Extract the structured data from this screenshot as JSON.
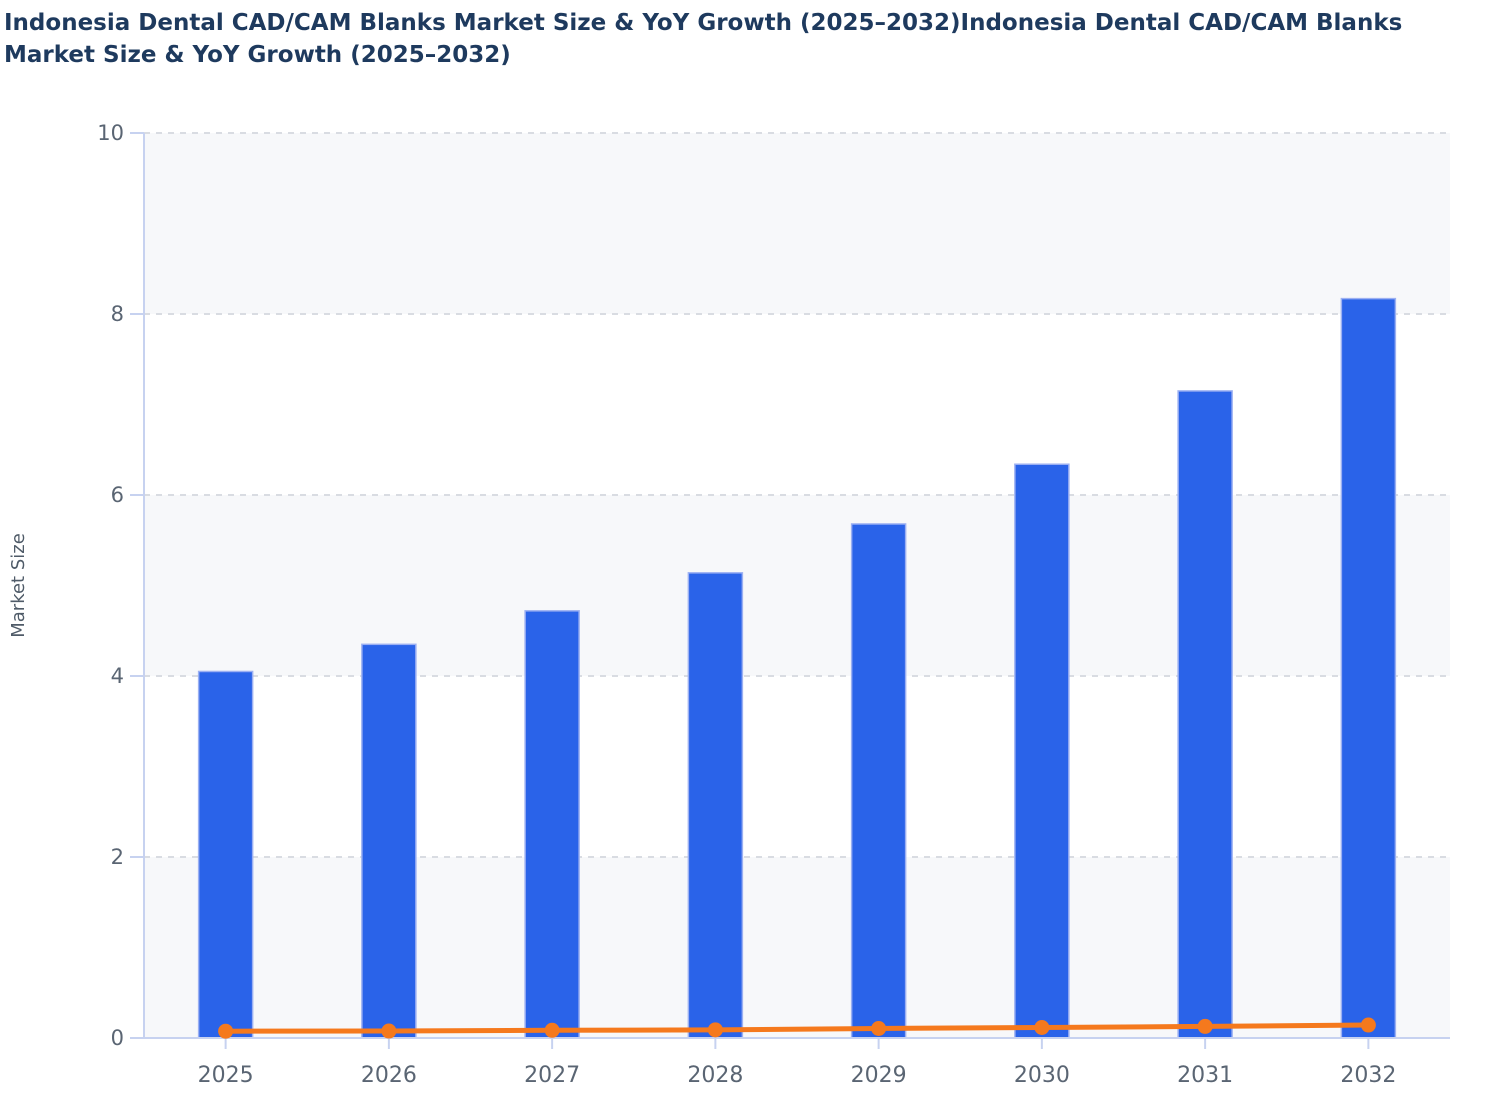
{
  "header": {
    "title": "Indonesia Dental CAD/CAM Blanks Market Size & YoY Growth (2025–2032)Indonesia Dental CAD/CAM Blanks Market Size & YoY Growth (2025–2032)",
    "title_lines": [
      "Indonesia Dental CAD/CAM Blanks Market Size & YoY Growth (2025–2032)Indonesia Dental CAD/CAM Blanks",
      "Market Size & YoY Growth (2025–2032)"
    ]
  },
  "chart_data": {
    "type": "bar",
    "title": "Indonesia Dental CAD/CAM Blanks Market Size & YoY Growth (2025–2032)",
    "categories": [
      "2025",
      "2026",
      "2027",
      "2028",
      "2029",
      "2030",
      "2031",
      "2032"
    ],
    "series": [
      {
        "name": "Market Size",
        "type": "bar",
        "color": "#2a63e9",
        "values": [
          4.05,
          4.35,
          4.72,
          5.14,
          5.68,
          6.34,
          7.15,
          8.17
        ]
      },
      {
        "name": "YoY Growth",
        "type": "line",
        "color": "#f5791d",
        "values": [
          0.075,
          0.077,
          0.085,
          0.09,
          0.105,
          0.116,
          0.128,
          0.143
        ]
      }
    ],
    "xlabel": "",
    "ylabel": "Market Size",
    "ylim": [
      0,
      10
    ],
    "yticks": [
      0,
      2,
      4,
      6,
      8,
      10
    ],
    "grid": "horizontal dashed at each y tick, none vertical",
    "legend": "none",
    "plot_bands": {
      "color": "#f7f8fa",
      "ranges": [
        [
          0,
          2
        ],
        [
          4,
          6
        ],
        [
          8,
          10
        ]
      ]
    }
  },
  "style": {
    "title_color": "#1e3a5e",
    "bar_color": "#2a63e9",
    "bar_border_color": "#9cb0f2",
    "line_color": "#f5791d",
    "axis_line_color": "#c7d2f0",
    "grid_color": "#d9dce2",
    "band_color": "#f7f8fa",
    "tick_label_color": "#5a6573",
    "axis_title_color": "#4f5b68",
    "background": "#ffffff"
  }
}
